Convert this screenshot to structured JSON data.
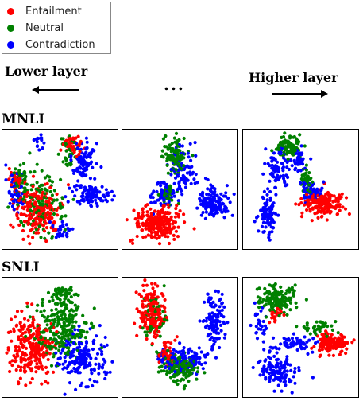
{
  "legend": {
    "items": [
      {
        "label": "Entailment",
        "color": "#ff0000"
      },
      {
        "label": "Neutral",
        "color": "#008000"
      },
      {
        "label": "Contradiction",
        "color": "#0000ff"
      }
    ]
  },
  "labels": {
    "lower_layer": "Lower layer",
    "ellipsis": "...",
    "higher_layer": "Higher layer"
  },
  "rows": [
    {
      "title": "MNLI"
    },
    {
      "title": "SNLI"
    }
  ],
  "chart_data": {
    "type": "scatter",
    "title": "",
    "series": [
      {
        "name": "Entailment",
        "color": "#ff0000"
      },
      {
        "name": "Neutral",
        "color": "#008000"
      },
      {
        "name": "Contradiction",
        "color": "#0000ff"
      }
    ],
    "grid": false,
    "legend_position": "top-left",
    "panels": [
      {
        "row": "MNLI",
        "layer": "lower",
        "clusters": [
          {
            "s": 0,
            "cx": 0.3,
            "cy": 0.68,
            "rx": 0.2,
            "ry": 0.22,
            "n": 200
          },
          {
            "s": 1,
            "cx": 0.34,
            "cy": 0.62,
            "rx": 0.2,
            "ry": 0.25,
            "n": 120
          },
          {
            "s": 0,
            "cx": 0.12,
            "cy": 0.42,
            "rx": 0.06,
            "ry": 0.1,
            "n": 40
          },
          {
            "s": 1,
            "cx": 0.15,
            "cy": 0.4,
            "rx": 0.08,
            "ry": 0.14,
            "n": 40
          },
          {
            "s": 2,
            "cx": 0.12,
            "cy": 0.5,
            "rx": 0.08,
            "ry": 0.16,
            "n": 50
          },
          {
            "s": 0,
            "cx": 0.62,
            "cy": 0.13,
            "rx": 0.08,
            "ry": 0.08,
            "n": 45
          },
          {
            "s": 1,
            "cx": 0.58,
            "cy": 0.2,
            "rx": 0.08,
            "ry": 0.12,
            "n": 35
          },
          {
            "s": 2,
            "cx": 0.7,
            "cy": 0.25,
            "rx": 0.1,
            "ry": 0.16,
            "n": 80
          },
          {
            "s": 2,
            "cx": 0.78,
            "cy": 0.55,
            "rx": 0.16,
            "ry": 0.1,
            "n": 110
          },
          {
            "s": 2,
            "cx": 0.5,
            "cy": 0.85,
            "rx": 0.12,
            "ry": 0.08,
            "n": 30
          },
          {
            "s": 2,
            "cx": 0.3,
            "cy": 0.1,
            "rx": 0.06,
            "ry": 0.06,
            "n": 15
          }
        ]
      },
      {
        "row": "MNLI",
        "layer": "middle",
        "clusters": [
          {
            "s": 0,
            "cx": 0.3,
            "cy": 0.78,
            "rx": 0.2,
            "ry": 0.14,
            "n": 230
          },
          {
            "s": 1,
            "cx": 0.46,
            "cy": 0.22,
            "rx": 0.09,
            "ry": 0.14,
            "n": 110
          },
          {
            "s": 2,
            "cx": 0.52,
            "cy": 0.35,
            "rx": 0.12,
            "ry": 0.2,
            "n": 80
          },
          {
            "s": 2,
            "cx": 0.78,
            "cy": 0.6,
            "rx": 0.14,
            "ry": 0.12,
            "n": 140
          },
          {
            "s": 2,
            "cx": 0.35,
            "cy": 0.55,
            "rx": 0.12,
            "ry": 0.1,
            "n": 60
          },
          {
            "s": 1,
            "cx": 0.4,
            "cy": 0.55,
            "rx": 0.08,
            "ry": 0.08,
            "n": 35
          }
        ]
      },
      {
        "row": "MNLI",
        "layer": "higher",
        "clusters": [
          {
            "s": 0,
            "cx": 0.7,
            "cy": 0.62,
            "rx": 0.18,
            "ry": 0.1,
            "n": 180
          },
          {
            "s": 1,
            "cx": 0.4,
            "cy": 0.14,
            "rx": 0.1,
            "ry": 0.08,
            "n": 90
          },
          {
            "s": 1,
            "cx": 0.55,
            "cy": 0.42,
            "rx": 0.05,
            "ry": 0.1,
            "n": 40
          },
          {
            "s": 2,
            "cx": 0.3,
            "cy": 0.32,
            "rx": 0.1,
            "ry": 0.16,
            "n": 80
          },
          {
            "s": 2,
            "cx": 0.22,
            "cy": 0.7,
            "rx": 0.08,
            "ry": 0.18,
            "n": 90
          },
          {
            "s": 2,
            "cx": 0.48,
            "cy": 0.24,
            "rx": 0.06,
            "ry": 0.12,
            "n": 40
          },
          {
            "s": 2,
            "cx": 0.58,
            "cy": 0.52,
            "rx": 0.1,
            "ry": 0.08,
            "n": 50
          }
        ]
      },
      {
        "row": "SNLI",
        "layer": "lower",
        "clusters": [
          {
            "s": 0,
            "cx": 0.25,
            "cy": 0.58,
            "rx": 0.2,
            "ry": 0.25,
            "n": 260
          },
          {
            "s": 1,
            "cx": 0.5,
            "cy": 0.42,
            "rx": 0.22,
            "ry": 0.28,
            "n": 230
          },
          {
            "s": 2,
            "cx": 0.7,
            "cy": 0.68,
            "rx": 0.2,
            "ry": 0.2,
            "n": 180
          },
          {
            "s": 1,
            "cx": 0.52,
            "cy": 0.12,
            "rx": 0.1,
            "ry": 0.06,
            "n": 40
          }
        ]
      },
      {
        "row": "SNLI",
        "layer": "middle",
        "clusters": [
          {
            "s": 0,
            "cx": 0.25,
            "cy": 0.3,
            "rx": 0.12,
            "ry": 0.22,
            "n": 180
          },
          {
            "s": 1,
            "cx": 0.28,
            "cy": 0.35,
            "rx": 0.1,
            "ry": 0.22,
            "n": 50
          },
          {
            "s": 1,
            "cx": 0.5,
            "cy": 0.76,
            "rx": 0.16,
            "ry": 0.12,
            "n": 130
          },
          {
            "s": 2,
            "cx": 0.8,
            "cy": 0.35,
            "rx": 0.1,
            "ry": 0.22,
            "n": 110
          },
          {
            "s": 2,
            "cx": 0.52,
            "cy": 0.68,
            "rx": 0.22,
            "ry": 0.1,
            "n": 110
          },
          {
            "s": 0,
            "cx": 0.4,
            "cy": 0.64,
            "rx": 0.08,
            "ry": 0.1,
            "n": 40
          }
        ]
      },
      {
        "row": "SNLI",
        "layer": "higher",
        "clusters": [
          {
            "s": 1,
            "cx": 0.3,
            "cy": 0.18,
            "rx": 0.16,
            "ry": 0.12,
            "n": 140
          },
          {
            "s": 1,
            "cx": 0.65,
            "cy": 0.42,
            "rx": 0.14,
            "ry": 0.06,
            "n": 40
          },
          {
            "s": 0,
            "cx": 0.78,
            "cy": 0.55,
            "rx": 0.14,
            "ry": 0.08,
            "n": 160
          },
          {
            "s": 0,
            "cx": 0.28,
            "cy": 0.3,
            "rx": 0.06,
            "ry": 0.1,
            "n": 30
          },
          {
            "s": 2,
            "cx": 0.45,
            "cy": 0.55,
            "rx": 0.22,
            "ry": 0.06,
            "n": 60
          },
          {
            "s": 2,
            "cx": 0.3,
            "cy": 0.78,
            "rx": 0.16,
            "ry": 0.14,
            "n": 120
          },
          {
            "s": 2,
            "cx": 0.15,
            "cy": 0.4,
            "rx": 0.06,
            "ry": 0.14,
            "n": 30
          }
        ]
      }
    ]
  }
}
